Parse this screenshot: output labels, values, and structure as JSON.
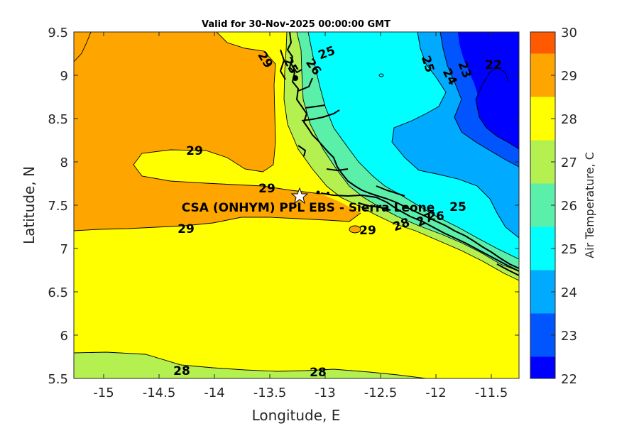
{
  "title": "Valid for 30-Nov-2025 00:00:00 GMT",
  "xaxis": {
    "label": "Longitude, E",
    "ticks": [
      "-15",
      "-14.5",
      "-14",
      "-13.5",
      "-13",
      "-12.5",
      "-12",
      "-11.5"
    ]
  },
  "yaxis": {
    "label": "Latitude, N",
    "ticks": [
      "9.5",
      "9",
      "8.5",
      "8",
      "7.5",
      "7",
      "6.5",
      "6",
      "5.5"
    ]
  },
  "colorbar": {
    "label": "Air Temperature, C",
    "ticks": [
      "30",
      "29",
      "28",
      "27",
      "26",
      "25",
      "24",
      "23",
      "22"
    ],
    "colors": [
      "#ff5a00",
      "#ffa500",
      "#ffff00",
      "#b4f050",
      "#5af0aa",
      "#00ffff",
      "#00aaff",
      "#0055ff",
      "#0000ff"
    ]
  },
  "site": {
    "label": "CSA (ONHYM) PPL EBS  - Sierra Leone",
    "lon": -13.22,
    "lat": 7.6
  },
  "contour_labels": [
    "29",
    "29",
    "29",
    "29",
    "29",
    "28",
    "28",
    "28",
    "26",
    "25",
    "25",
    "25",
    "24",
    "23",
    "22",
    "27",
    "26",
    "25"
  ],
  "chart_data": {
    "type": "heatmap",
    "title": "Valid for 30-Nov-2025 00:00:00 GMT",
    "xlabel": "Longitude, E",
    "ylabel": "Latitude, N",
    "xlim": [
      -15.25,
      -11.25
    ],
    "ylim": [
      5.5,
      9.5
    ],
    "colorbar_range": [
      22,
      30
    ],
    "levels": [
      22,
      23,
      24,
      25,
      26,
      27,
      28,
      29,
      30
    ]
  }
}
